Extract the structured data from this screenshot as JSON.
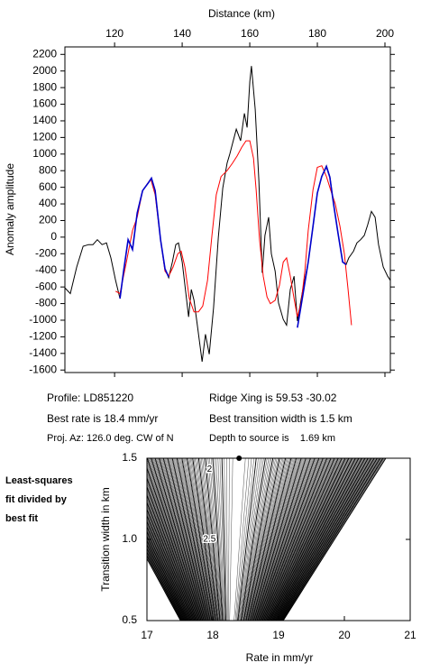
{
  "chart_data": [
    {
      "type": "line",
      "xlabel": "Distance (km)",
      "ylabel": "Anomaly amplitude",
      "xlim": [
        105.3,
        201.6
      ],
      "xticks": [
        120,
        140,
        160,
        180,
        200
      ],
      "ylim": [
        -1630,
        2290
      ],
      "yticks": [
        -1600,
        -1400,
        -1200,
        -1000,
        -800,
        -600,
        -400,
        -200,
        0,
        200,
        400,
        600,
        800,
        1000,
        1200,
        1400,
        1600,
        1800,
        2000,
        2200
      ],
      "series": [
        {
          "color": "#000000",
          "x": [
            105.3,
            106.9,
            108.8,
            110.7,
            112.3,
            113.6,
            114.9,
            116.3,
            117.6,
            118.9,
            120.3,
            121.6,
            122.7,
            124.0,
            125.3,
            126.7,
            128.3,
            130.9,
            132.0,
            133.6,
            134.9,
            136.0,
            137.1,
            138.1,
            138.9,
            140.0,
            141.1,
            141.9,
            142.7,
            143.5,
            144.5,
            145.9,
            146.9,
            148.0,
            149.3,
            150.7,
            152.0,
            153.3,
            154.1,
            156.0,
            157.3,
            158.4,
            159.2,
            160.0,
            160.5,
            161.6,
            162.7,
            163.7,
            164.5,
            165.6,
            166.4,
            167.5,
            168.5,
            169.9,
            170.9,
            172.0,
            173.1,
            174.1,
            175.7,
            177.3,
            178.7,
            180.0,
            181.3,
            182.7,
            183.7,
            184.8,
            186.1,
            187.5,
            188.5,
            189.3,
            190.7,
            191.7,
            192.8,
            193.9,
            194.9,
            196.0,
            197.1,
            198.1,
            199.5,
            200.8,
            201.6
          ],
          "values": [
            -610,
            -680,
            -360,
            -110,
            -90,
            -90,
            -30,
            -90,
            -70,
            -250,
            -520,
            -740,
            -410,
            -30,
            -140,
            290,
            560,
            710,
            560,
            -30,
            -380,
            -490,
            -300,
            -90,
            -70,
            -300,
            -680,
            -960,
            -630,
            -760,
            -1060,
            -1500,
            -1170,
            -1410,
            -850,
            0,
            590,
            890,
            1000,
            1300,
            1160,
            1490,
            1320,
            1870,
            2060,
            1540,
            670,
            -430,
            20,
            240,
            -200,
            -410,
            -790,
            -990,
            -1060,
            -630,
            -470,
            -1010,
            -630,
            -300,
            130,
            530,
            730,
            860,
            730,
            400,
            50,
            -300,
            -330,
            -250,
            -170,
            -70,
            -30,
            20,
            150,
            310,
            240,
            -90,
            -360,
            -470,
            -520
          ]
        },
        {
          "color": "#ff0000",
          "x": [
            120.3,
            121.6,
            123.5,
            125.3,
            126.7,
            128.3,
            130.7,
            132.0,
            133.6,
            134.9,
            136.0,
            137.3,
            138.7,
            139.7,
            140.8,
            142.1,
            143.5,
            144.8,
            146.1,
            147.5,
            148.8,
            150.1,
            151.5,
            153.3,
            154.9,
            156.3,
            157.6,
            158.9,
            160.0,
            161.1,
            161.9,
            162.9,
            164.0,
            165.1,
            166.1,
            167.5,
            168.8,
            169.9,
            170.9,
            172.0,
            173.1,
            174.1,
            175.2,
            176.3,
            177.3,
            178.7,
            180.0,
            181.3,
            182.7,
            184.0,
            185.3,
            186.7,
            188.0,
            189.1,
            190.1
          ],
          "values": [
            -650,
            -680,
            -300,
            80,
            240,
            560,
            700,
            510,
            -30,
            -410,
            -470,
            -360,
            -200,
            -170,
            -360,
            -740,
            -900,
            -900,
            -830,
            -520,
            20,
            510,
            730,
            800,
            890,
            980,
            1080,
            1160,
            1160,
            950,
            560,
            -30,
            -470,
            -720,
            -800,
            -760,
            -580,
            -300,
            -250,
            -470,
            -740,
            -960,
            -790,
            -410,
            80,
            570,
            840,
            860,
            730,
            560,
            400,
            130,
            -200,
            -630,
            -1060
          ]
        },
        {
          "color": "#0000cc",
          "x": [
            121.6,
            122.7,
            124.0,
            125.3,
            126.7,
            128.3,
            130.1,
            130.9,
            132.0,
            133.6,
            134.9,
            136.0,
            null,
            174.1,
            175.7,
            177.3,
            178.7,
            180.0,
            181.3,
            182.7,
            183.7,
            184.8,
            186.1,
            187.5,
            188.5
          ],
          "values": [
            -740,
            -400,
            -30,
            -150,
            290,
            560,
            660,
            710,
            560,
            -30,
            -380,
            -480,
            null,
            -1090,
            -700,
            -300,
            130,
            530,
            730,
            850,
            720,
            400,
            50,
            -300,
            -330
          ]
        }
      ],
      "info": [
        "Profile: LD851220",
        "Best rate is 18.4 mm/yr",
        "Proj. Az: 126.0 deg. CW of N",
        "Ridge Xing is 59.53 -30.02",
        "Best transition width is 1.5 km",
        "Depth to source is    1.69 km"
      ]
    },
    {
      "type": "contour",
      "note": [
        "Least-squares",
        "fit divided by",
        "best fit"
      ],
      "xlabel": "Rate in mm/yr",
      "ylabel": "Transition width in km",
      "xlim": [
        17,
        21
      ],
      "xticks": [
        17,
        18,
        19,
        20,
        21
      ],
      "ylim": [
        0.5,
        1.5
      ],
      "yticks": [
        0.5,
        {
          "value": 1,
          "label": "1.0"
        },
        1.5
      ],
      "best_point": {
        "x": 18.4,
        "y": 1.5
      },
      "contour_labels": [
        {
          "label": "2",
          "x": 17.95,
          "y": 1.43
        },
        {
          "label": "2.5",
          "x": 17.95,
          "y": 1.0
        }
      ]
    }
  ]
}
